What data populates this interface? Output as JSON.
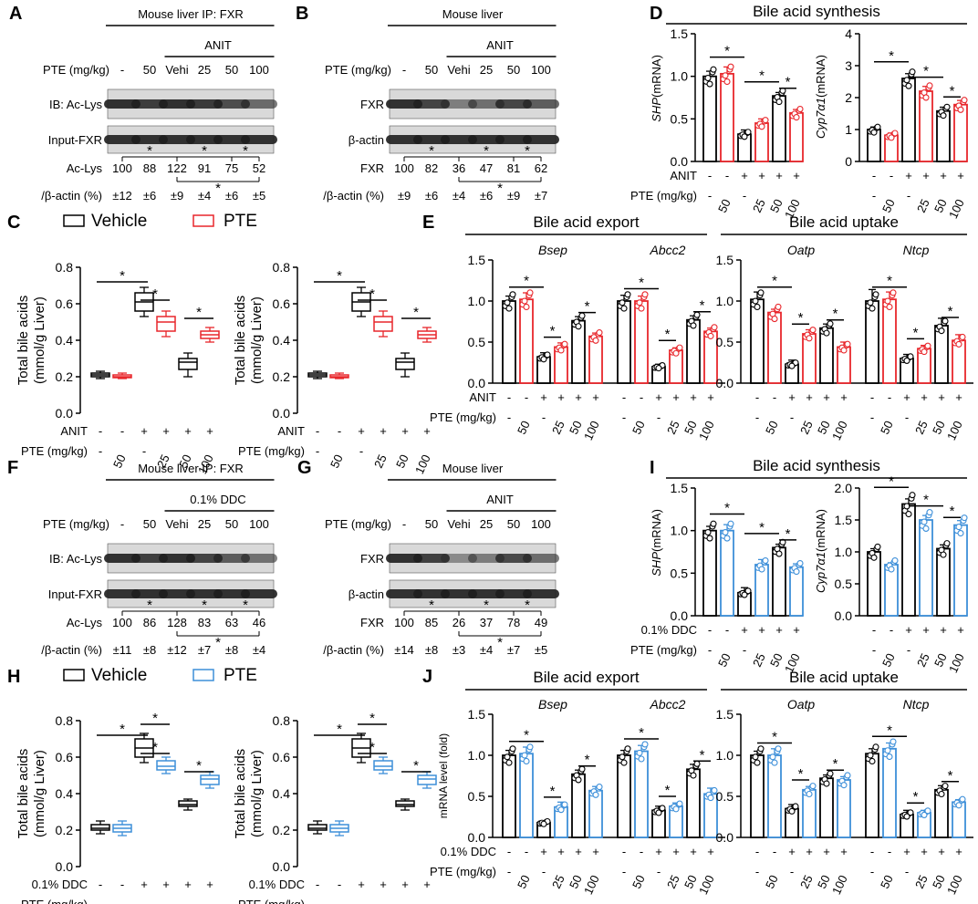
{
  "panel_letters": [
    "A",
    "B",
    "C",
    "D",
    "E",
    "F",
    "G",
    "H",
    "I",
    "J"
  ],
  "colors": {
    "black": "#000000",
    "red": "#e8262b",
    "blue": "#3d8fd9",
    "blot_bg": "#d9d9d9"
  },
  "blots": [
    {
      "key": "A",
      "title": "Mouse liver IP: FXR",
      "treatment": "ANIT",
      "dose_label": "PTE (mg/kg)",
      "lanes": [
        "-",
        "50",
        "Vehi",
        "25",
        "50",
        "100"
      ],
      "rows": [
        "IB: Ac-Lys",
        "Input-FXR"
      ],
      "quant_label": "Ac-Lys",
      "unit_label": "/β-actin (%)",
      "values": [
        "100",
        "88",
        "122",
        "91",
        "75",
        "52"
      ],
      "errors": [
        "±12",
        "±6",
        "±9",
        "±4",
        "±6",
        "±5"
      ]
    },
    {
      "key": "B",
      "title": "Mouse liver",
      "treatment": "ANIT",
      "dose_label": "PTE (mg/kg)",
      "lanes": [
        "-",
        "50",
        "Vehi",
        "25",
        "50",
        "100"
      ],
      "rows": [
        "FXR",
        "β-actin"
      ],
      "quant_label": "FXR",
      "unit_label": "/β-actin (%)",
      "values": [
        "100",
        "82",
        "36",
        "47",
        "81",
        "62"
      ],
      "errors": [
        "±9",
        "±6",
        "±4",
        "±6",
        "±9",
        "±7"
      ]
    },
    {
      "key": "F",
      "title": "Mouse liver IP: FXR",
      "treatment": "0.1% DDC",
      "dose_label": "PTE (mg/kg)",
      "lanes": [
        "-",
        "50",
        "Vehi",
        "25",
        "50",
        "100"
      ],
      "rows": [
        "IB: Ac-Lys",
        "Input-FXR"
      ],
      "quant_label": "Ac-Lys",
      "unit_label": "/β-actin (%)",
      "values": [
        "100",
        "86",
        "128",
        "83",
        "63",
        "46"
      ],
      "errors": [
        "±11",
        "±8",
        "±12",
        "±7",
        "±8",
        "±4"
      ]
    },
    {
      "key": "G",
      "title": "Mouse liver",
      "treatment": "ANIT",
      "dose_label": "PTE (mg/kg)",
      "lanes": [
        "-",
        "50",
        "Vehi",
        "25",
        "50",
        "100"
      ],
      "rows": [
        "FXR",
        "β-actin"
      ],
      "quant_label": "FXR",
      "unit_label": "/β-actin (%)",
      "values": [
        "100",
        "85",
        "26",
        "37",
        "78",
        "49"
      ],
      "errors": [
        "±14",
        "±8",
        "±3",
        "±4",
        "±7",
        "±5"
      ]
    }
  ],
  "legends": {
    "C": {
      "vehicle": "Vehicle",
      "pte": "PTE"
    },
    "H": {
      "vehicle": "Vehicle",
      "pte": "PTE"
    }
  },
  "headers": {
    "D": "Bile acid synthesis",
    "E_left": "Bile acid export",
    "E_right": "Bile acid uptake",
    "I": "Bile acid synthesis",
    "J_left": "Bile acid export",
    "J_right": "Bile acid uptake"
  },
  "conditions": {
    "anit": [
      "-",
      "-",
      "+",
      "+",
      "+",
      "+"
    ],
    "ddc": [
      "-",
      "-",
      "+",
      "+",
      "+",
      "+"
    ],
    "pte": [
      "-",
      "50",
      "-",
      "25",
      "50",
      "100"
    ],
    "anit_label": "ANIT",
    "ddc_label": "0.1% DDC",
    "pte_label": "PTE (mg/kg)"
  },
  "chart_data": [
    {
      "id": "C1",
      "type": "box",
      "ylabel": "Total bile acids (mmol/g Liver)",
      "ylim": [
        0,
        0.8
      ],
      "yticks": [
        "0.0",
        "0.2",
        "0.4",
        "0.6",
        "0.8"
      ],
      "condition": "ANIT",
      "boxes": [
        {
          "min": 0.19,
          "q1": 0.2,
          "med": 0.21,
          "q3": 0.22,
          "max": 0.23
        },
        {
          "min": 0.19,
          "q1": 0.195,
          "med": 0.2,
          "q3": 0.21,
          "max": 0.22
        },
        {
          "min": 0.53,
          "q1": 0.56,
          "med": 0.61,
          "q3": 0.66,
          "max": 0.69
        },
        {
          "min": 0.42,
          "q1": 0.45,
          "med": 0.5,
          "q3": 0.53,
          "max": 0.56
        },
        {
          "min": 0.2,
          "q1": 0.24,
          "med": 0.28,
          "q3": 0.3,
          "max": 0.33
        },
        {
          "min": 0.39,
          "q1": 0.41,
          "med": 0.43,
          "q3": 0.45,
          "max": 0.47
        }
      ]
    },
    {
      "id": "C2",
      "type": "box",
      "ylabel": "Total bile acids (mmol/g Liver)",
      "ylim": [
        0,
        0.8
      ],
      "yticks": [
        "0.0",
        "0.2",
        "0.4",
        "0.6",
        "0.8"
      ],
      "condition": "ANIT",
      "boxes": [
        {
          "min": 0.19,
          "q1": 0.2,
          "med": 0.21,
          "q3": 0.22,
          "max": 0.23
        },
        {
          "min": 0.19,
          "q1": 0.195,
          "med": 0.2,
          "q3": 0.21,
          "max": 0.22
        },
        {
          "min": 0.53,
          "q1": 0.56,
          "med": 0.61,
          "q3": 0.66,
          "max": 0.69
        },
        {
          "min": 0.42,
          "q1": 0.45,
          "med": 0.5,
          "q3": 0.53,
          "max": 0.56
        },
        {
          "min": 0.2,
          "q1": 0.24,
          "med": 0.28,
          "q3": 0.3,
          "max": 0.33
        },
        {
          "min": 0.39,
          "q1": 0.41,
          "med": 0.43,
          "q3": 0.45,
          "max": 0.47
        }
      ]
    },
    {
      "id": "H1",
      "type": "box",
      "ylabel": "Total bile acids (mmol/g Liver)",
      "ylim": [
        0,
        0.8
      ],
      "yticks": [
        "0.0",
        "0.2",
        "0.4",
        "0.6",
        "0.8"
      ],
      "condition": "0.1% DDC",
      "boxes": [
        {
          "min": 0.18,
          "q1": 0.2,
          "med": 0.21,
          "q3": 0.23,
          "max": 0.25
        },
        {
          "min": 0.17,
          "q1": 0.19,
          "med": 0.21,
          "q3": 0.23,
          "max": 0.25
        },
        {
          "min": 0.57,
          "q1": 0.6,
          "med": 0.65,
          "q3": 0.7,
          "max": 0.73
        },
        {
          "min": 0.51,
          "q1": 0.53,
          "med": 0.55,
          "q3": 0.58,
          "max": 0.6
        },
        {
          "min": 0.31,
          "q1": 0.33,
          "med": 0.34,
          "q3": 0.36,
          "max": 0.37
        },
        {
          "min": 0.43,
          "q1": 0.45,
          "med": 0.48,
          "q3": 0.5,
          "max": 0.52
        }
      ]
    },
    {
      "id": "H2",
      "type": "box",
      "ylabel": "Total bile acids (mmol/g Liver)",
      "ylim": [
        0,
        0.8
      ],
      "yticks": [
        "0.0",
        "0.2",
        "0.4",
        "0.6",
        "0.8"
      ],
      "condition": "0.1% DDC",
      "boxes": [
        {
          "min": 0.18,
          "q1": 0.2,
          "med": 0.21,
          "q3": 0.23,
          "max": 0.25
        },
        {
          "min": 0.17,
          "q1": 0.19,
          "med": 0.21,
          "q3": 0.23,
          "max": 0.25
        },
        {
          "min": 0.57,
          "q1": 0.6,
          "med": 0.65,
          "q3": 0.7,
          "max": 0.73
        },
        {
          "min": 0.51,
          "q1": 0.53,
          "med": 0.55,
          "q3": 0.58,
          "max": 0.6
        },
        {
          "min": 0.31,
          "q1": 0.33,
          "med": 0.34,
          "q3": 0.36,
          "max": 0.37
        },
        {
          "min": 0.43,
          "q1": 0.45,
          "med": 0.48,
          "q3": 0.5,
          "max": 0.52
        }
      ]
    },
    {
      "id": "D1",
      "type": "bar",
      "gene": "SHP",
      "ylabel_suffix": " (mRNA)",
      "ylim": [
        0,
        1.5
      ],
      "yticks": [
        "0.0",
        "0.5",
        "1.0",
        "1.5"
      ],
      "values": [
        1.0,
        1.03,
        0.32,
        0.45,
        0.77,
        0.57
      ],
      "errors": [
        0.06,
        0.08,
        0.05,
        0.05,
        0.04,
        0.04
      ]
    },
    {
      "id": "D2",
      "type": "bar",
      "gene": "Cyp7α1",
      "ylabel_suffix": " (mRNA)",
      "ylim": [
        0,
        4
      ],
      "yticks": [
        "0",
        "1",
        "2",
        "3",
        "4"
      ],
      "values": [
        1.0,
        0.82,
        2.6,
        2.2,
        1.58,
        1.78
      ],
      "errors": [
        0.08,
        0.07,
        0.15,
        0.15,
        0.12,
        0.13
      ]
    },
    {
      "id": "I1",
      "type": "bar",
      "gene": "SHP",
      "ylabel_suffix": " (mRNA)",
      "ylim": [
        0,
        1.5
      ],
      "yticks": [
        "0.0",
        "0.5",
        "1.0",
        "1.5"
      ],
      "values": [
        1.0,
        1.0,
        0.27,
        0.6,
        0.8,
        0.57
      ],
      "errors": [
        0.05,
        0.07,
        0.06,
        0.06,
        0.04,
        0.04
      ]
    },
    {
      "id": "I2",
      "type": "bar",
      "gene": "Cyp7α1",
      "ylabel_suffix": " (mRNA)",
      "ylim": [
        0,
        2.0
      ],
      "yticks": [
        "0.0",
        "0.5",
        "1.0",
        "1.5",
        "2.0"
      ],
      "values": [
        1.0,
        0.8,
        1.75,
        1.5,
        1.05,
        1.42
      ],
      "errors": [
        0.05,
        0.03,
        0.08,
        0.07,
        0.06,
        0.07
      ]
    },
    {
      "id": "E1",
      "type": "bar",
      "ylim": [
        0,
        1.5
      ],
      "yticks": [
        "0.0",
        "0.5",
        "1.0",
        "1.5"
      ],
      "genes": [
        "Bsep",
        "Abcc2"
      ],
      "groups": [
        {
          "values": [
            1.0,
            1.02,
            0.32,
            0.44,
            0.76,
            0.57
          ],
          "errors": [
            0.06,
            0.08,
            0.05,
            0.05,
            0.05,
            0.04
          ]
        },
        {
          "values": [
            1.0,
            1.0,
            0.2,
            0.4,
            0.77,
            0.63
          ],
          "errors": [
            0.07,
            0.06,
            0.03,
            0.03,
            0.05,
            0.04
          ]
        }
      ]
    },
    {
      "id": "E2",
      "type": "bar",
      "ylim": [
        0,
        1.5
      ],
      "yticks": [
        "0.0",
        "0.5",
        "1.0",
        "1.5"
      ],
      "genes": [
        "Oatp",
        "Ntcp"
      ],
      "groups": [
        {
          "values": [
            1.02,
            0.86,
            0.23,
            0.6,
            0.67,
            0.44
          ],
          "errors": [
            0.09,
            0.04,
            0.05,
            0.05,
            0.05,
            0.06
          ]
        },
        {
          "values": [
            1.0,
            1.02,
            0.3,
            0.42,
            0.7,
            0.52
          ],
          "errors": [
            0.14,
            0.09,
            0.05,
            0.04,
            0.09,
            0.07
          ]
        }
      ]
    },
    {
      "id": "J1",
      "type": "bar",
      "ylabel": "mRNA level (fold)",
      "ylim": [
        0,
        1.5
      ],
      "yticks": [
        "0.0",
        "0.5",
        "1.0",
        "1.5"
      ],
      "genes": [
        "Bsep",
        "Abcc2"
      ],
      "groups": [
        {
          "values": [
            1.0,
            1.02,
            0.18,
            0.37,
            0.77,
            0.57
          ],
          "errors": [
            0.06,
            0.08,
            0.02,
            0.06,
            0.05,
            0.05
          ]
        },
        {
          "values": [
            1.0,
            1.05,
            0.33,
            0.38,
            0.83,
            0.53
          ],
          "errors": [
            0.06,
            0.07,
            0.05,
            0.04,
            0.06,
            0.07
          ]
        }
      ]
    },
    {
      "id": "J2",
      "type": "bar",
      "ylim": [
        0,
        1.5
      ],
      "yticks": [
        "0.0",
        "0.5",
        "1.0",
        "1.5"
      ],
      "genes": [
        "Oatp",
        "Ntcp"
      ],
      "groups": [
        {
          "values": [
            1.0,
            1.0,
            0.35,
            0.58,
            0.72,
            0.7
          ],
          "errors": [
            0.05,
            0.08,
            0.05,
            0.04,
            0.04,
            0.04
          ]
        },
        {
          "values": [
            1.02,
            1.08,
            0.28,
            0.3,
            0.58,
            0.43
          ],
          "errors": [
            0.06,
            0.07,
            0.05,
            0.03,
            0.05,
            0.03
          ]
        }
      ]
    }
  ]
}
